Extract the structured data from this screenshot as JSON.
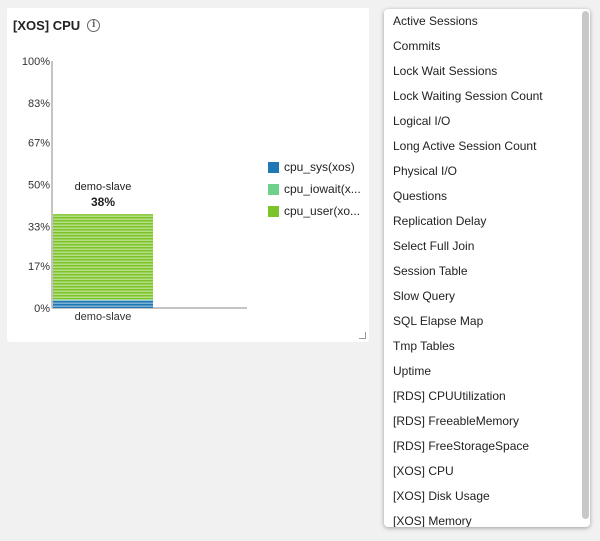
{
  "widget": {
    "title": "[XOS] CPU",
    "info_icon": "info-icon",
    "resize_icon": "resize-handle-icon"
  },
  "chart_data": {
    "type": "bar",
    "stacked": true,
    "categories": [
      "demo-slave"
    ],
    "series": [
      {
        "name": "cpu_sys(xos)",
        "values": [
          3
        ],
        "color": "#1f77b4"
      },
      {
        "name": "cpu_iowait(x...",
        "values": [
          0.5
        ],
        "color": "#6fd08c"
      },
      {
        "name": "cpu_user(xo...",
        "values": [
          34.5
        ],
        "color": "#7cc42a"
      }
    ],
    "data_label_name": "demo-slave",
    "data_label_value": "38%",
    "ylim": [
      0,
      100
    ],
    "y_ticks": [
      "0%",
      "17%",
      "33%",
      "50%",
      "67%",
      "83%",
      "100%"
    ],
    "y_tick_values": [
      0,
      17,
      33,
      50,
      67,
      83,
      100
    ],
    "grid": false,
    "legend_position": "right"
  },
  "dropdown": {
    "items": [
      "Active Sessions",
      "Commits",
      "Lock Wait Sessions",
      "Lock Waiting Session Count",
      "Logical I/O",
      "Long Active Session Count",
      "Physical I/O",
      "Questions",
      "Replication Delay",
      "Select Full Join",
      "Session Table",
      "Slow Query",
      "SQL Elapse Map",
      "Tmp Tables",
      "Uptime",
      "[RDS] CPUUtilization",
      "[RDS] FreeableMemory",
      "[RDS] FreeStorageSpace",
      "[XOS] CPU",
      "[XOS] Disk Usage",
      "[XOS] Memory"
    ]
  }
}
